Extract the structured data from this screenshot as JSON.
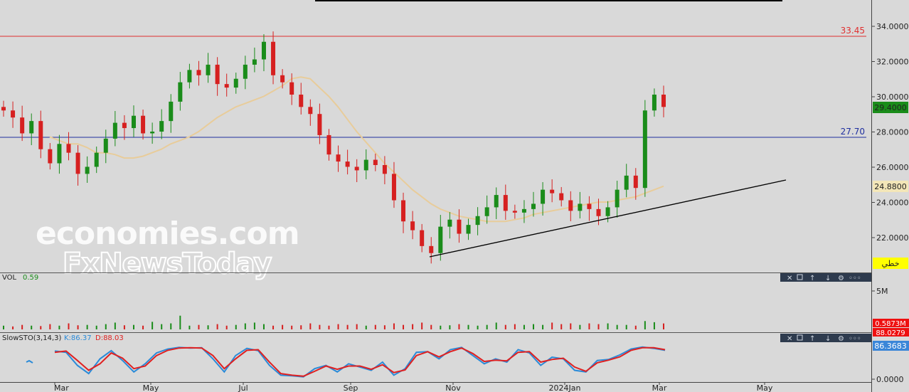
{
  "colors": {
    "background": "#d9d9d9",
    "up": "#1a8c1a",
    "down": "#d62020",
    "ma": "#e8cc9a",
    "resistance": "#e03030",
    "support": "#1f2f9f",
    "trendline": "#000000",
    "stoch_k": "#2a8ad8",
    "stoch_d": "#e02020",
    "badge_green": "#1a8c1a",
    "badge_yellow": "#ffff00",
    "badge_red": "#ee1010",
    "badge_blue": "#3a86d8"
  },
  "watermark": {
    "line1": "economies.com",
    "line2": "FxNewsToday"
  },
  "price_panel": {
    "resistance_label": "33.45",
    "support_label": "27.70",
    "last_price_badge": "29.4000",
    "ma_badge": "24.8800",
    "mode_badge": "خطي",
    "y_ticks": [
      "34.0000",
      "32.0000",
      "30.0000",
      "28.0000",
      "26.0000",
      "24.0000",
      "22.0000"
    ]
  },
  "volume_panel": {
    "label": "VOL",
    "value": "0.59",
    "y_tick": "5M",
    "badge": "0.5873M"
  },
  "stoch_panel": {
    "label": "SlowSTO(3,14,3)",
    "k_label": "K:86.37",
    "d_label": "D:88.03",
    "badge_d": "88.0279",
    "badge_k": "86.3683",
    "y_tick": "0.0000"
  },
  "x_axis": {
    "labels": [
      "Mar",
      "May",
      "Jul",
      "Sep",
      "Nov",
      "2024Jan",
      "Mar",
      "May"
    ]
  },
  "chart_data": [
    {
      "type": "line",
      "series": [
        {
          "values": [
            29.2,
            28.8,
            27.9,
            28.6,
            27.0,
            26.2,
            27.3,
            26.8,
            25.6,
            26.0,
            26.8,
            27.6,
            28.5,
            28.2,
            28.9,
            27.9,
            28.0,
            28.6,
            29.7,
            30.8,
            31.5,
            31.2,
            31.8,
            30.7,
            30.5,
            31.0,
            31.8,
            32.1,
            33.1,
            31.2,
            30.8,
            30.1,
            29.4,
            29.0,
            27.8,
            26.7,
            26.3,
            26.0,
            25.8,
            26.4,
            26.1,
            25.6,
            24.1,
            22.9,
            22.4,
            21.5,
            21.1,
            22.6,
            23.0,
            22.2,
            22.7,
            23.2,
            23.7,
            24.4,
            23.5,
            23.4,
            23.6,
            23.9,
            24.7,
            24.5,
            24.1,
            23.5,
            23.9,
            23.6,
            23.2,
            23.7,
            24.7,
            25.5,
            24.8,
            29.2,
            30.1,
            29.4
          ],
          "ylim": [
            20.8,
            34.6
          ]
        },
        {
          "values": [
            27.7,
            27.5,
            27.3,
            27.3,
            27.1,
            26.8,
            26.8,
            26.7,
            26.5,
            26.5,
            26.6,
            26.8,
            27.0,
            27.3,
            27.5,
            27.7,
            28.0,
            28.4,
            28.8,
            29.1,
            29.4,
            29.6,
            29.8,
            30.0,
            30.3,
            30.6,
            31.0,
            31.1,
            31.0,
            30.5,
            30.0,
            29.4,
            28.7,
            28.0,
            27.4,
            26.8,
            26.2,
            25.7,
            25.2,
            24.7,
            24.3,
            23.9,
            23.6,
            23.4,
            23.2,
            23.1,
            23.0,
            22.9,
            22.9,
            22.9,
            23.0,
            23.1,
            23.3,
            23.4,
            23.5,
            23.6,
            23.7,
            23.8,
            23.9,
            24.0,
            24.0,
            24.1,
            24.2,
            24.3,
            24.5,
            24.7,
            24.9
          ]
        }
      ],
      "reference_lines": [
        {
          "label": "33.45",
          "value": 33.45
        },
        {
          "label": "27.70",
          "value": 27.7
        }
      ]
    },
    {
      "type": "bar",
      "title": "VOL",
      "values": [
        0.3,
        0.2,
        0.4,
        0.3,
        0.25,
        0.5,
        0.3,
        0.6,
        0.35,
        0.4,
        0.3,
        0.5,
        0.7,
        0.35,
        0.4,
        0.3,
        0.8,
        0.5,
        0.6,
        1.6,
        0.3,
        0.4,
        0.35,
        0.5,
        0.3,
        0.4,
        0.6,
        0.7,
        0.5,
        0.3,
        0.4,
        0.3,
        0.35,
        0.6,
        0.4,
        0.3,
        0.5,
        0.4,
        0.5,
        0.3,
        0.4,
        0.35,
        0.6,
        0.4,
        0.5,
        0.7,
        0.4,
        0.3,
        0.35,
        0.5,
        0.4,
        0.3,
        0.4,
        0.7,
        0.4,
        0.5,
        0.4,
        0.5,
        0.4,
        0.7,
        0.5,
        0.6,
        0.4,
        0.6,
        0.5,
        0.6,
        0.4,
        0.4,
        0.3,
        0.9,
        0.75,
        0.59
      ],
      "ylim": [
        0,
        5.6
      ]
    },
    {
      "type": "line",
      "title": "SlowSTO(3,14,3)",
      "series": [
        {
          "name": "K:86.37",
          "values": [
            84,
            80,
            40,
            15,
            60,
            85,
            55,
            20,
            45,
            78,
            90,
            95,
            93,
            94,
            60,
            20,
            70,
            92,
            85,
            40,
            10,
            8,
            5,
            30,
            40,
            20,
            45,
            35,
            25,
            50,
            10,
            30,
            80,
            82,
            60,
            88,
            95,
            70,
            45,
            60,
            50,
            88,
            78,
            40,
            65,
            60,
            25,
            20,
            55,
            58,
            72,
            90,
            96,
            92,
            86
          ]
        },
        {
          "name": "D:88.03",
          "values": [
            80,
            84,
            55,
            25,
            45,
            78,
            62,
            30,
            38,
            70,
            86,
            93,
            94,
            93,
            70,
            30,
            60,
            86,
            88,
            50,
            15,
            10,
            7,
            22,
            38,
            28,
            38,
            38,
            28,
            42,
            18,
            26,
            70,
            82,
            66,
            82,
            93,
            76,
            52,
            56,
            54,
            80,
            82,
            50,
            58,
            62,
            35,
            22,
            48,
            56,
            66,
            86,
            94,
            94,
            88
          ]
        }
      ],
      "ylim": [
        0,
        100
      ]
    }
  ]
}
